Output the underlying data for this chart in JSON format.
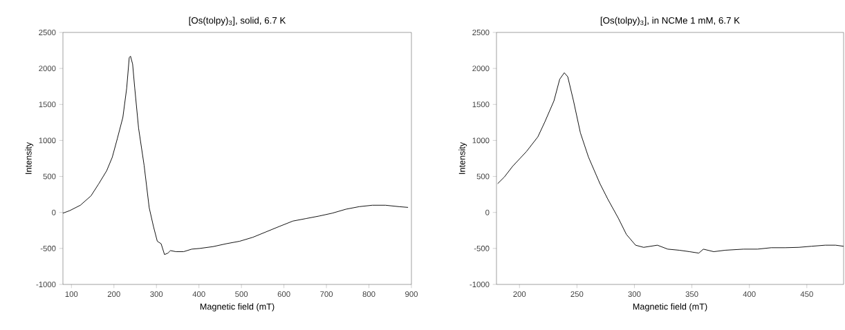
{
  "chart_data": [
    {
      "type": "line",
      "title": "[Os(tolpy)$_{3}$], solid, 6.7 K",
      "xlabel": "Magnetic field (mT)",
      "ylabel": "Intensity",
      "color": "#000000",
      "x": [
        80,
        96,
        121,
        146,
        164,
        183,
        196,
        208,
        221,
        230,
        236,
        239,
        244,
        249,
        258,
        271,
        283,
        293,
        302,
        311,
        319,
        327,
        333,
        346,
        364,
        383,
        402,
        433,
        464,
        496,
        527,
        558,
        589,
        621,
        652,
        683,
        714,
        746,
        777,
        808,
        839,
        871,
        892
      ],
      "values": [
        -10,
        25,
        100,
        230,
        395,
        580,
        765,
        1025,
        1320,
        1725,
        2150,
        2170,
        2060,
        1725,
        1170,
        655,
        65,
        -195,
        -400,
        -435,
        -585,
        -565,
        -530,
        -545,
        -545,
        -510,
        -500,
        -475,
        -435,
        -400,
        -345,
        -270,
        -195,
        -120,
        -85,
        -50,
        -10,
        45,
        80,
        100,
        100,
        80,
        70
      ],
      "xlim": [
        80,
        900
      ],
      "ylim": [
        -1000,
        2500
      ],
      "xticks": [
        100,
        200,
        300,
        400,
        500,
        600,
        700,
        800,
        900
      ],
      "yticks": [
        -1000,
        -500,
        0,
        500,
        1000,
        1500,
        2000,
        2500
      ]
    },
    {
      "type": "line",
      "title": "[Os(tolpy)$_{3}$], in NCMe 1 mM, 6.7 K",
      "xlabel": "Magnetic field (mT)",
      "ylabel": "Intensity",
      "color": "#000000",
      "x": [
        181,
        187,
        194,
        206,
        216,
        222,
        230,
        235,
        239,
        242,
        247,
        253,
        260,
        270,
        277,
        286,
        293,
        301,
        308,
        320,
        329,
        339,
        348,
        356,
        360,
        369,
        379,
        395,
        407,
        419,
        431,
        443,
        454,
        466,
        475,
        482
      ],
      "values": [
        400,
        495,
        640,
        845,
        1050,
        1255,
        1550,
        1850,
        1940,
        1885,
        1550,
        1105,
        770,
        400,
        180,
        -80,
        -305,
        -455,
        -485,
        -455,
        -510,
        -525,
        -545,
        -565,
        -510,
        -545,
        -525,
        -510,
        -510,
        -490,
        -490,
        -485,
        -470,
        -455,
        -455,
        -470
      ],
      "xlim": [
        180,
        482
      ],
      "ylim": [
        -1000,
        2500
      ],
      "xticks": [
        200,
        250,
        300,
        350,
        400,
        450
      ],
      "yticks": [
        -1000,
        -500,
        0,
        500,
        1000,
        1500,
        2000,
        2500
      ]
    }
  ]
}
